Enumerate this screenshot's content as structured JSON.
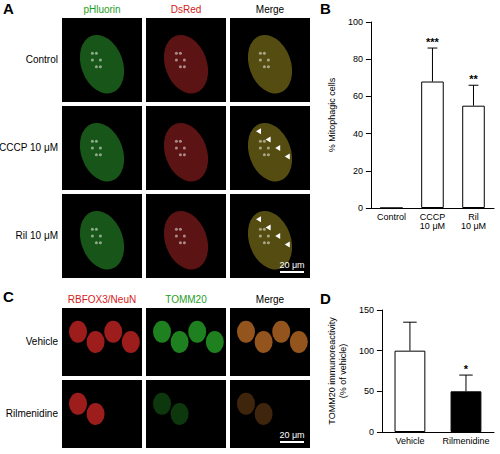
{
  "images": [
    {
      "panel": "A",
      "channels": [
        {
          "name": "pHluorin",
          "color": "#1f9e1f"
        },
        {
          "name": "DsRed",
          "color": "#d42020"
        },
        {
          "name": "Merge",
          "color": "#000000"
        }
      ],
      "rows": [
        "Control",
        "CCCP 10 μM",
        "Ril 10 μM"
      ],
      "scale_bar": "20 μm"
    },
    {
      "panel": "C",
      "channels": [
        {
          "name": "RBFOX3/NeuN",
          "color": "#d42020"
        },
        {
          "name": "TOMM20",
          "color": "#1f9e1f"
        },
        {
          "name": "Merge",
          "color": "#000000"
        }
      ],
      "rows": [
        "Vehicle",
        "Rilmenidine"
      ],
      "scale_bar": "20 μm"
    }
  ],
  "chart_data": [
    {
      "panel": "B",
      "type": "bar",
      "categories": [
        "Control",
        "CCCP 10 μM",
        "Ril 10 μM"
      ],
      "values": [
        0,
        68,
        55
      ],
      "errors": [
        0,
        18,
        11
      ],
      "colors": [
        "#ffffff",
        "#ffffff",
        "#ffffff"
      ],
      "ylabel": "% Mitophagic cells",
      "ylim": [
        0,
        100
      ],
      "yticks": [
        0,
        20,
        40,
        60,
        80,
        100
      ],
      "grid": false,
      "annotations": [
        {
          "category": "CCCP 10 μM",
          "text": "***"
        },
        {
          "category": "Ril 10 μM",
          "text": "**"
        }
      ]
    },
    {
      "panel": "D",
      "type": "bar",
      "categories": [
        "Vehicle",
        "Rilmenidine"
      ],
      "values": [
        100,
        50
      ],
      "errors": [
        35,
        20
      ],
      "colors": [
        "#ffffff",
        "#000000"
      ],
      "ylabel": "TOMM20 immunoreactivity (% of vehicle)",
      "ylim": [
        0,
        150
      ],
      "yticks": [
        0,
        50,
        100,
        150
      ],
      "grid": false,
      "annotations": [
        {
          "category": "Rilmenidine",
          "text": "*"
        }
      ]
    }
  ]
}
